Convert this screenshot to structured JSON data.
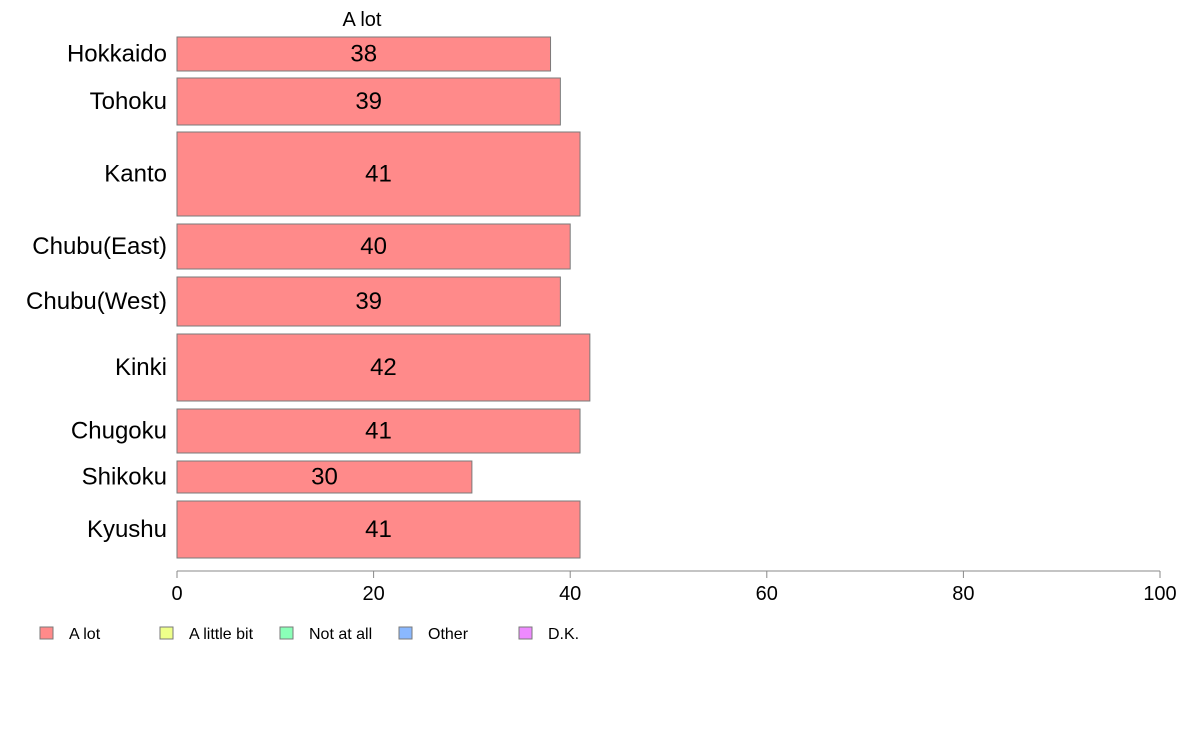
{
  "chart_data": {
    "type": "bar",
    "orientation": "horizontal",
    "stacked": true,
    "categories": [
      "Hokkaido",
      "Tohoku",
      "Kanto",
      "Chubu(East)",
      "Chubu(West)",
      "Kinki",
      "Chugoku",
      "Shikoku",
      "Kyushu"
    ],
    "series": [
      {
        "name": "A lot",
        "color": "#ff8a8a",
        "values": [
          38,
          39,
          41,
          40,
          39,
          42,
          41,
          30,
          41
        ],
        "labels": [
          "38",
          "39",
          "41",
          "40",
          "39",
          "42",
          "41",
          "30",
          "41"
        ]
      }
    ],
    "visible_series_header": "A lot",
    "xlim": [
      0,
      100
    ],
    "xticks": [
      "0",
      "20",
      "40",
      "60",
      "80",
      "100"
    ],
    "grid": false,
    "legend": {
      "placement": "bottom-left",
      "items": [
        {
          "label": "A lot",
          "color": "#ff8a8a"
        },
        {
          "label": "A little bit",
          "color": "#eeff8a"
        },
        {
          "label": "Not at all",
          "color": "#8affb8"
        },
        {
          "label": "Other",
          "color": "#8ab8ff"
        },
        {
          "label": "D.K.",
          "color": "#ee8aff"
        }
      ]
    }
  }
}
